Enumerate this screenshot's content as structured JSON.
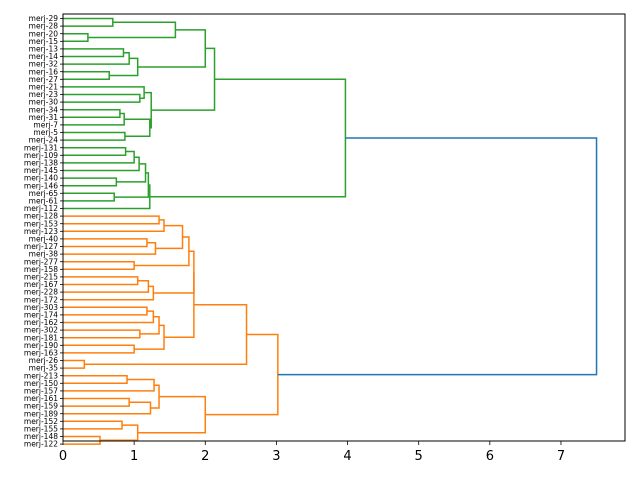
{
  "chart_data": {
    "type": "dendrogram",
    "orientation": "right",
    "title": "",
    "xlabel": "",
    "ylabel": "",
    "xlim": [
      0,
      7.9
    ],
    "xticks": [
      0,
      1,
      2,
      3,
      4,
      5,
      6,
      7
    ],
    "grid": false,
    "colors": {
      "cluster_a": "#2ca02c",
      "cluster_b": "#ff7f0e",
      "root": "#1f77b4"
    },
    "leaves": [
      "merj-29",
      "merj-28",
      "merj-20",
      "merj-15",
      "merj-13",
      "merj-14",
      "merj-32",
      "merj-16",
      "merj-27",
      "merj-21",
      "merj-23",
      "merj-30",
      "merj-34",
      "merj-31",
      "merj-7",
      "merj-5",
      "merj-24",
      "merj-131",
      "merj-109",
      "merj-138",
      "merj-145",
      "merj-140",
      "merj-146",
      "merj-65",
      "merj-61",
      "merj-112",
      "merj-128",
      "merj-153",
      "merj-123",
      "merj-40",
      "merj-127",
      "merj-38",
      "merj-277",
      "merj-158",
      "merj-215",
      "merj-167",
      "merj-228",
      "merj-172",
      "merj-303",
      "merj-174",
      "merj-162",
      "merj-302",
      "merj-181",
      "merj-190",
      "merj-163",
      "merj-26",
      "merj-35",
      "merj-213",
      "merj-150",
      "merj-157",
      "merj-161",
      "merj-159",
      "merj-189",
      "merj-152",
      "merj-155",
      "merj-148",
      "merj-122"
    ],
    "merges": [
      {
        "a": "L0",
        "b": "L1",
        "h": 0.7,
        "c": "cluster_a"
      },
      {
        "a": "L2",
        "b": "L3",
        "h": 0.35,
        "c": "cluster_a"
      },
      {
        "a": "N0",
        "b": "N1",
        "h": 1.58,
        "c": "cluster_a"
      },
      {
        "a": "L4",
        "b": "L5",
        "h": 0.85,
        "c": "cluster_a"
      },
      {
        "a": "N3",
        "b": "L6",
        "h": 0.93,
        "c": "cluster_a"
      },
      {
        "a": "L7",
        "b": "L8",
        "h": 0.65,
        "c": "cluster_a"
      },
      {
        "a": "N4",
        "b": "N5",
        "h": 1.05,
        "c": "cluster_a"
      },
      {
        "a": "N2",
        "b": "N6",
        "h": 2.0,
        "c": "cluster_a"
      },
      {
        "a": "L10",
        "b": "L11",
        "h": 1.08,
        "c": "cluster_a"
      },
      {
        "a": "L9",
        "b": "N8",
        "h": 1.14,
        "c": "cluster_a"
      },
      {
        "a": "L12",
        "b": "L13",
        "h": 0.8,
        "c": "cluster_a"
      },
      {
        "a": "N10",
        "b": "L14",
        "h": 0.86,
        "c": "cluster_a"
      },
      {
        "a": "L15",
        "b": "L16",
        "h": 0.87,
        "c": "cluster_a"
      },
      {
        "a": "N11",
        "b": "N12",
        "h": 1.22,
        "c": "cluster_a"
      },
      {
        "a": "N9",
        "b": "N13",
        "h": 1.24,
        "c": "cluster_a"
      },
      {
        "a": "N7",
        "b": "N14",
        "h": 2.13,
        "c": "cluster_a"
      },
      {
        "a": "L17",
        "b": "L18",
        "h": 0.88,
        "c": "cluster_a"
      },
      {
        "a": "N16",
        "b": "L19",
        "h": 1.0,
        "c": "cluster_a"
      },
      {
        "a": "N17",
        "b": "L20",
        "h": 1.07,
        "c": "cluster_a"
      },
      {
        "a": "L21",
        "b": "L22",
        "h": 0.75,
        "c": "cluster_a"
      },
      {
        "a": "N18",
        "b": "N19",
        "h": 1.16,
        "c": "cluster_a"
      },
      {
        "a": "L23",
        "b": "L24",
        "h": 0.72,
        "c": "cluster_a"
      },
      {
        "a": "N20",
        "b": "N21",
        "h": 1.2,
        "c": "cluster_a"
      },
      {
        "a": "N22",
        "b": "L25",
        "h": 1.22,
        "c": "cluster_a"
      },
      {
        "a": "N15",
        "b": "N23",
        "h": 3.97,
        "c": "cluster_a"
      },
      {
        "a": "L26",
        "b": "L27",
        "h": 1.35,
        "c": "cluster_b"
      },
      {
        "a": "N25",
        "b": "L28",
        "h": 1.42,
        "c": "cluster_b"
      },
      {
        "a": "L29",
        "b": "L30",
        "h": 1.18,
        "c": "cluster_b"
      },
      {
        "a": "N27",
        "b": "L31",
        "h": 1.3,
        "c": "cluster_b"
      },
      {
        "a": "N26",
        "b": "N28",
        "h": 1.68,
        "c": "cluster_b"
      },
      {
        "a": "L32",
        "b": "L33",
        "h": 1.0,
        "c": "cluster_b"
      },
      {
        "a": "N29",
        "b": "N30",
        "h": 1.77,
        "c": "cluster_b"
      },
      {
        "a": "L34",
        "b": "L35",
        "h": 1.05,
        "c": "cluster_b"
      },
      {
        "a": "N32",
        "b": "L36",
        "h": 1.2,
        "c": "cluster_b"
      },
      {
        "a": "N33",
        "b": "L37",
        "h": 1.27,
        "c": "cluster_b"
      },
      {
        "a": "N31",
        "b": "N34",
        "h": 1.84,
        "c": "cluster_b"
      },
      {
        "a": "L38",
        "b": "L39",
        "h": 1.18,
        "c": "cluster_b"
      },
      {
        "a": "N36",
        "b": "L40",
        "h": 1.27,
        "c": "cluster_b"
      },
      {
        "a": "L41",
        "b": "L42",
        "h": 1.08,
        "c": "cluster_b"
      },
      {
        "a": "N37",
        "b": "N38",
        "h": 1.35,
        "c": "cluster_b"
      },
      {
        "a": "L43",
        "b": "L44",
        "h": 1.0,
        "c": "cluster_b"
      },
      {
        "a": "N39",
        "b": "N40",
        "h": 1.42,
        "c": "cluster_b"
      },
      {
        "a": "N35",
        "b": "N41",
        "h": 1.84,
        "c": "cluster_b"
      },
      {
        "a": "L45",
        "b": "L46",
        "h": 0.3,
        "c": "cluster_b"
      },
      {
        "a": "N42",
        "b": "N43",
        "h": 2.58,
        "c": "cluster_b"
      },
      {
        "a": "L47",
        "b": "L48",
        "h": 0.9,
        "c": "cluster_b"
      },
      {
        "a": "N45",
        "b": "L49",
        "h": 1.28,
        "c": "cluster_b"
      },
      {
        "a": "L50",
        "b": "L51",
        "h": 0.93,
        "c": "cluster_b"
      },
      {
        "a": "N47",
        "b": "L52",
        "h": 1.23,
        "c": "cluster_b"
      },
      {
        "a": "N46",
        "b": "N48",
        "h": 1.35,
        "c": "cluster_b"
      },
      {
        "a": "L53",
        "b": "L54",
        "h": 0.83,
        "c": "cluster_b"
      },
      {
        "a": "L55",
        "b": "L56",
        "h": 0.52,
        "c": "cluster_b"
      },
      {
        "a": "N50",
        "b": "N51",
        "h": 1.05,
        "c": "cluster_b"
      },
      {
        "a": "N49",
        "b": "N52",
        "h": 2.0,
        "c": "cluster_b"
      },
      {
        "a": "N44",
        "b": "N53",
        "h": 3.02,
        "c": "cluster_b"
      },
      {
        "a": "N24",
        "b": "N54",
        "h": 7.5,
        "c": "root"
      }
    ]
  }
}
